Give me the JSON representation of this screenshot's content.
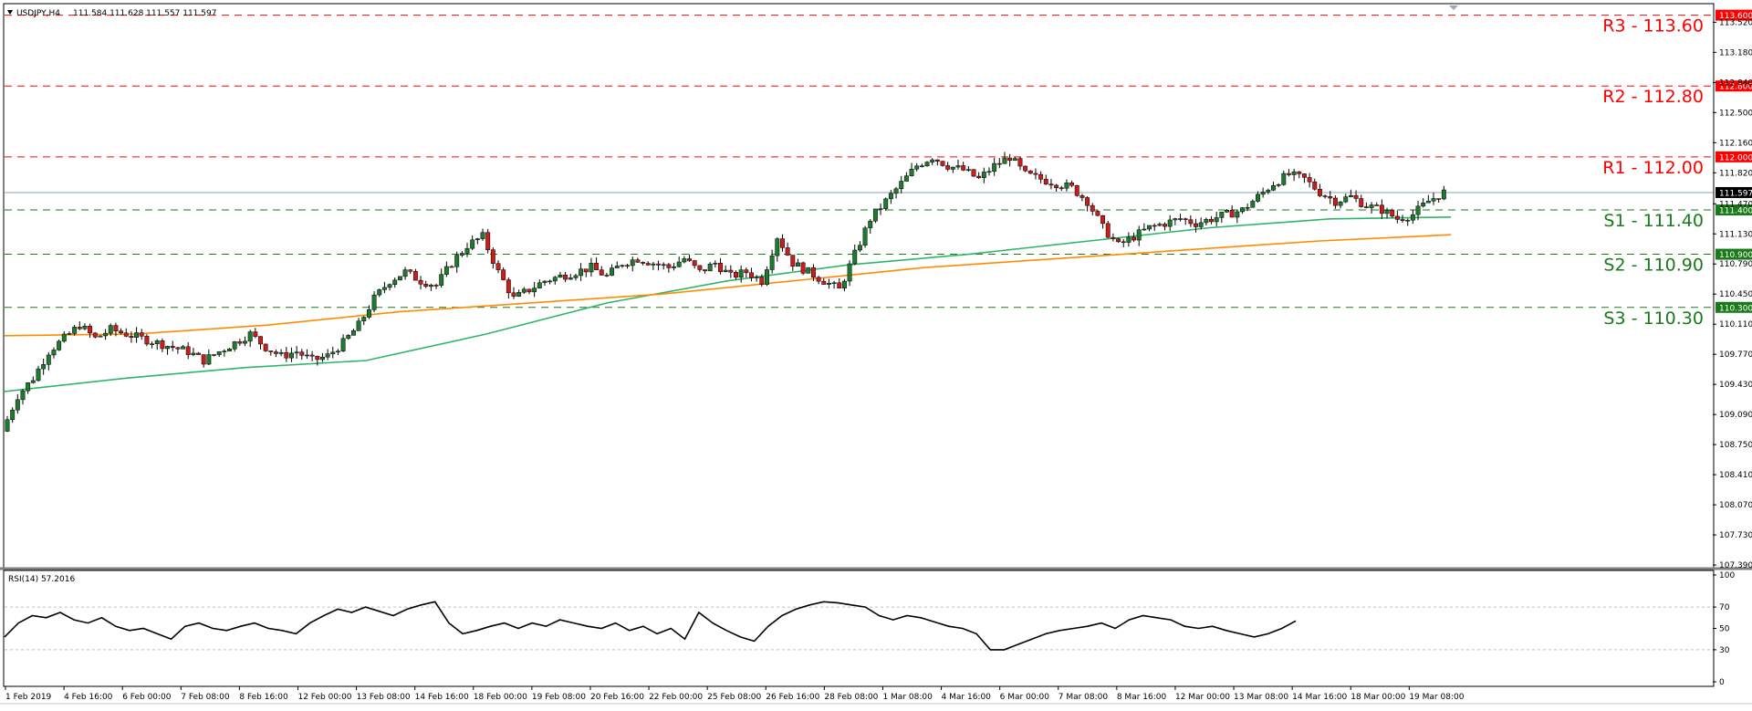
{
  "header": {
    "symbol_label": "USDJPY,H4",
    "ohlc": "111.584 111.628 111.557 111.597"
  },
  "rsi": {
    "label": "RSI(14) 57.2016",
    "axis_ticks": [
      "100",
      "70",
      "50",
      "30",
      "0"
    ]
  },
  "colors": {
    "up_candle": "#1e7a2e",
    "down_candle": "#cc1d1d",
    "wick": "#000000",
    "resistance": "#ff0000",
    "support": "#1a7a1a",
    "ma_fast": "#2fb56a",
    "ma_slow": "#ff8c00",
    "price_line": "#8aa0b0"
  },
  "chart_data": [
    {
      "type": "candlestick",
      "title": "USDJPY,H4",
      "y_axis_ticks": [
        113.52,
        113.18,
        112.84,
        112.5,
        112.16,
        111.82,
        111.47,
        111.13,
        110.79,
        110.45,
        110.11,
        109.77,
        109.43,
        109.09,
        108.75,
        108.41,
        108.07,
        107.73,
        107.39
      ],
      "ylim": [
        107.37,
        113.72
      ],
      "x_tick_labels": [
        "1 Feb 2019",
        "4 Feb 16:00",
        "6 Feb 00:00",
        "7 Feb 08:00",
        "8 Feb 16:00",
        "12 Feb 00:00",
        "13 Feb 08:00",
        "14 Feb 16:00",
        "18 Feb 00:00",
        "19 Feb 08:00",
        "20 Feb 16:00",
        "22 Feb 00:00",
        "25 Feb 08:00",
        "26 Feb 16:00",
        "28 Feb 08:00",
        "1 Mar 08:00",
        "4 Mar 16:00",
        "6 Mar 00:00",
        "7 Mar 08:00",
        "8 Mar 16:00",
        "12 Mar 00:00",
        "13 Mar 08:00",
        "14 Mar 16:00",
        "18 Mar 00:00",
        "19 Mar 08:00"
      ],
      "close_path": [
        108.9,
        109.3,
        109.5,
        109.8,
        109.95,
        110.1,
        109.95,
        110.05,
        110.0,
        109.95,
        109.9,
        109.85,
        109.8,
        109.7,
        109.8,
        109.9,
        110.0,
        109.85,
        109.75,
        109.8,
        109.7,
        109.75,
        109.9,
        110.1,
        110.4,
        110.6,
        110.7,
        110.6,
        110.55,
        110.8,
        111.0,
        111.1,
        110.7,
        110.4,
        110.5,
        110.6,
        110.65,
        110.7,
        110.75,
        110.65,
        110.8,
        110.85,
        110.8,
        110.75,
        110.85,
        110.7,
        110.8,
        110.65,
        110.7,
        110.6,
        111.1,
        110.8,
        110.7,
        110.6,
        110.5,
        110.9,
        111.3,
        111.5,
        111.7,
        111.9,
        112.0,
        111.9,
        111.85,
        111.75,
        111.9,
        112.0,
        111.8,
        111.75,
        111.7,
        111.65,
        111.5,
        111.2,
        111.0,
        111.1,
        111.2,
        111.25,
        111.3,
        111.25,
        111.3,
        111.35,
        111.4,
        111.55,
        111.7,
        111.8,
        111.75,
        111.6,
        111.5,
        111.55,
        111.45,
        111.4,
        111.3,
        111.35,
        111.5,
        111.6
      ],
      "ma_fast_path": [
        109.35,
        109.5,
        109.62,
        109.7,
        110.0,
        110.35,
        110.6,
        110.78,
        110.9,
        111.05,
        111.2,
        111.3,
        111.32
      ],
      "ma_slow_path": [
        109.98,
        110.0,
        110.1,
        110.25,
        110.35,
        110.45,
        110.6,
        110.75,
        110.85,
        110.95,
        111.05,
        111.12
      ],
      "levels": [
        {
          "name": "R3",
          "value": 113.6,
          "label": "R3 - 113.60",
          "tag": "113.600",
          "kind": "resistance"
        },
        {
          "name": "R2",
          "value": 112.8,
          "label": "R2 - 112.80",
          "tag": "112.800",
          "kind": "resistance"
        },
        {
          "name": "R1",
          "value": 112.0,
          "label": "R1 - 112.00",
          "tag": "112.000",
          "kind": "resistance"
        },
        {
          "name": "S1",
          "value": 111.4,
          "label": "S1 - 111.40",
          "tag": "111.400",
          "kind": "support"
        },
        {
          "name": "S2",
          "value": 110.9,
          "label": "S2 - 110.90",
          "tag": "110.900",
          "kind": "support"
        },
        {
          "name": "S3",
          "value": 110.3,
          "label": "S3 - 110.30",
          "tag": "110.300",
          "kind": "support"
        }
      ],
      "current_price": {
        "value": 111.597,
        "tag": "111.597"
      },
      "grid": false
    },
    {
      "type": "line",
      "title": "RSI(14) 57.2016",
      "ylim": [
        0,
        100
      ],
      "y_axis_ticks": [
        100,
        70,
        50,
        30,
        0
      ],
      "reference_lines": [
        70,
        30
      ],
      "values": [
        42,
        55,
        62,
        60,
        65,
        58,
        55,
        60,
        52,
        48,
        50,
        45,
        40,
        52,
        55,
        50,
        48,
        52,
        55,
        50,
        48,
        45,
        55,
        62,
        68,
        65,
        70,
        66,
        62,
        68,
        72,
        75,
        55,
        45,
        48,
        52,
        55,
        50,
        55,
        52,
        58,
        55,
        52,
        50,
        55,
        48,
        52,
        45,
        50,
        40,
        65,
        55,
        48,
        42,
        38,
        52,
        62,
        68,
        72,
        75,
        74,
        72,
        70,
        62,
        58,
        62,
        60,
        56,
        52,
        50,
        45,
        30,
        30,
        35,
        40,
        45,
        48,
        50,
        52,
        55,
        50,
        58,
        62,
        60,
        58,
        52,
        50,
        52,
        48,
        45,
        42,
        45,
        50,
        57
      ]
    }
  ]
}
